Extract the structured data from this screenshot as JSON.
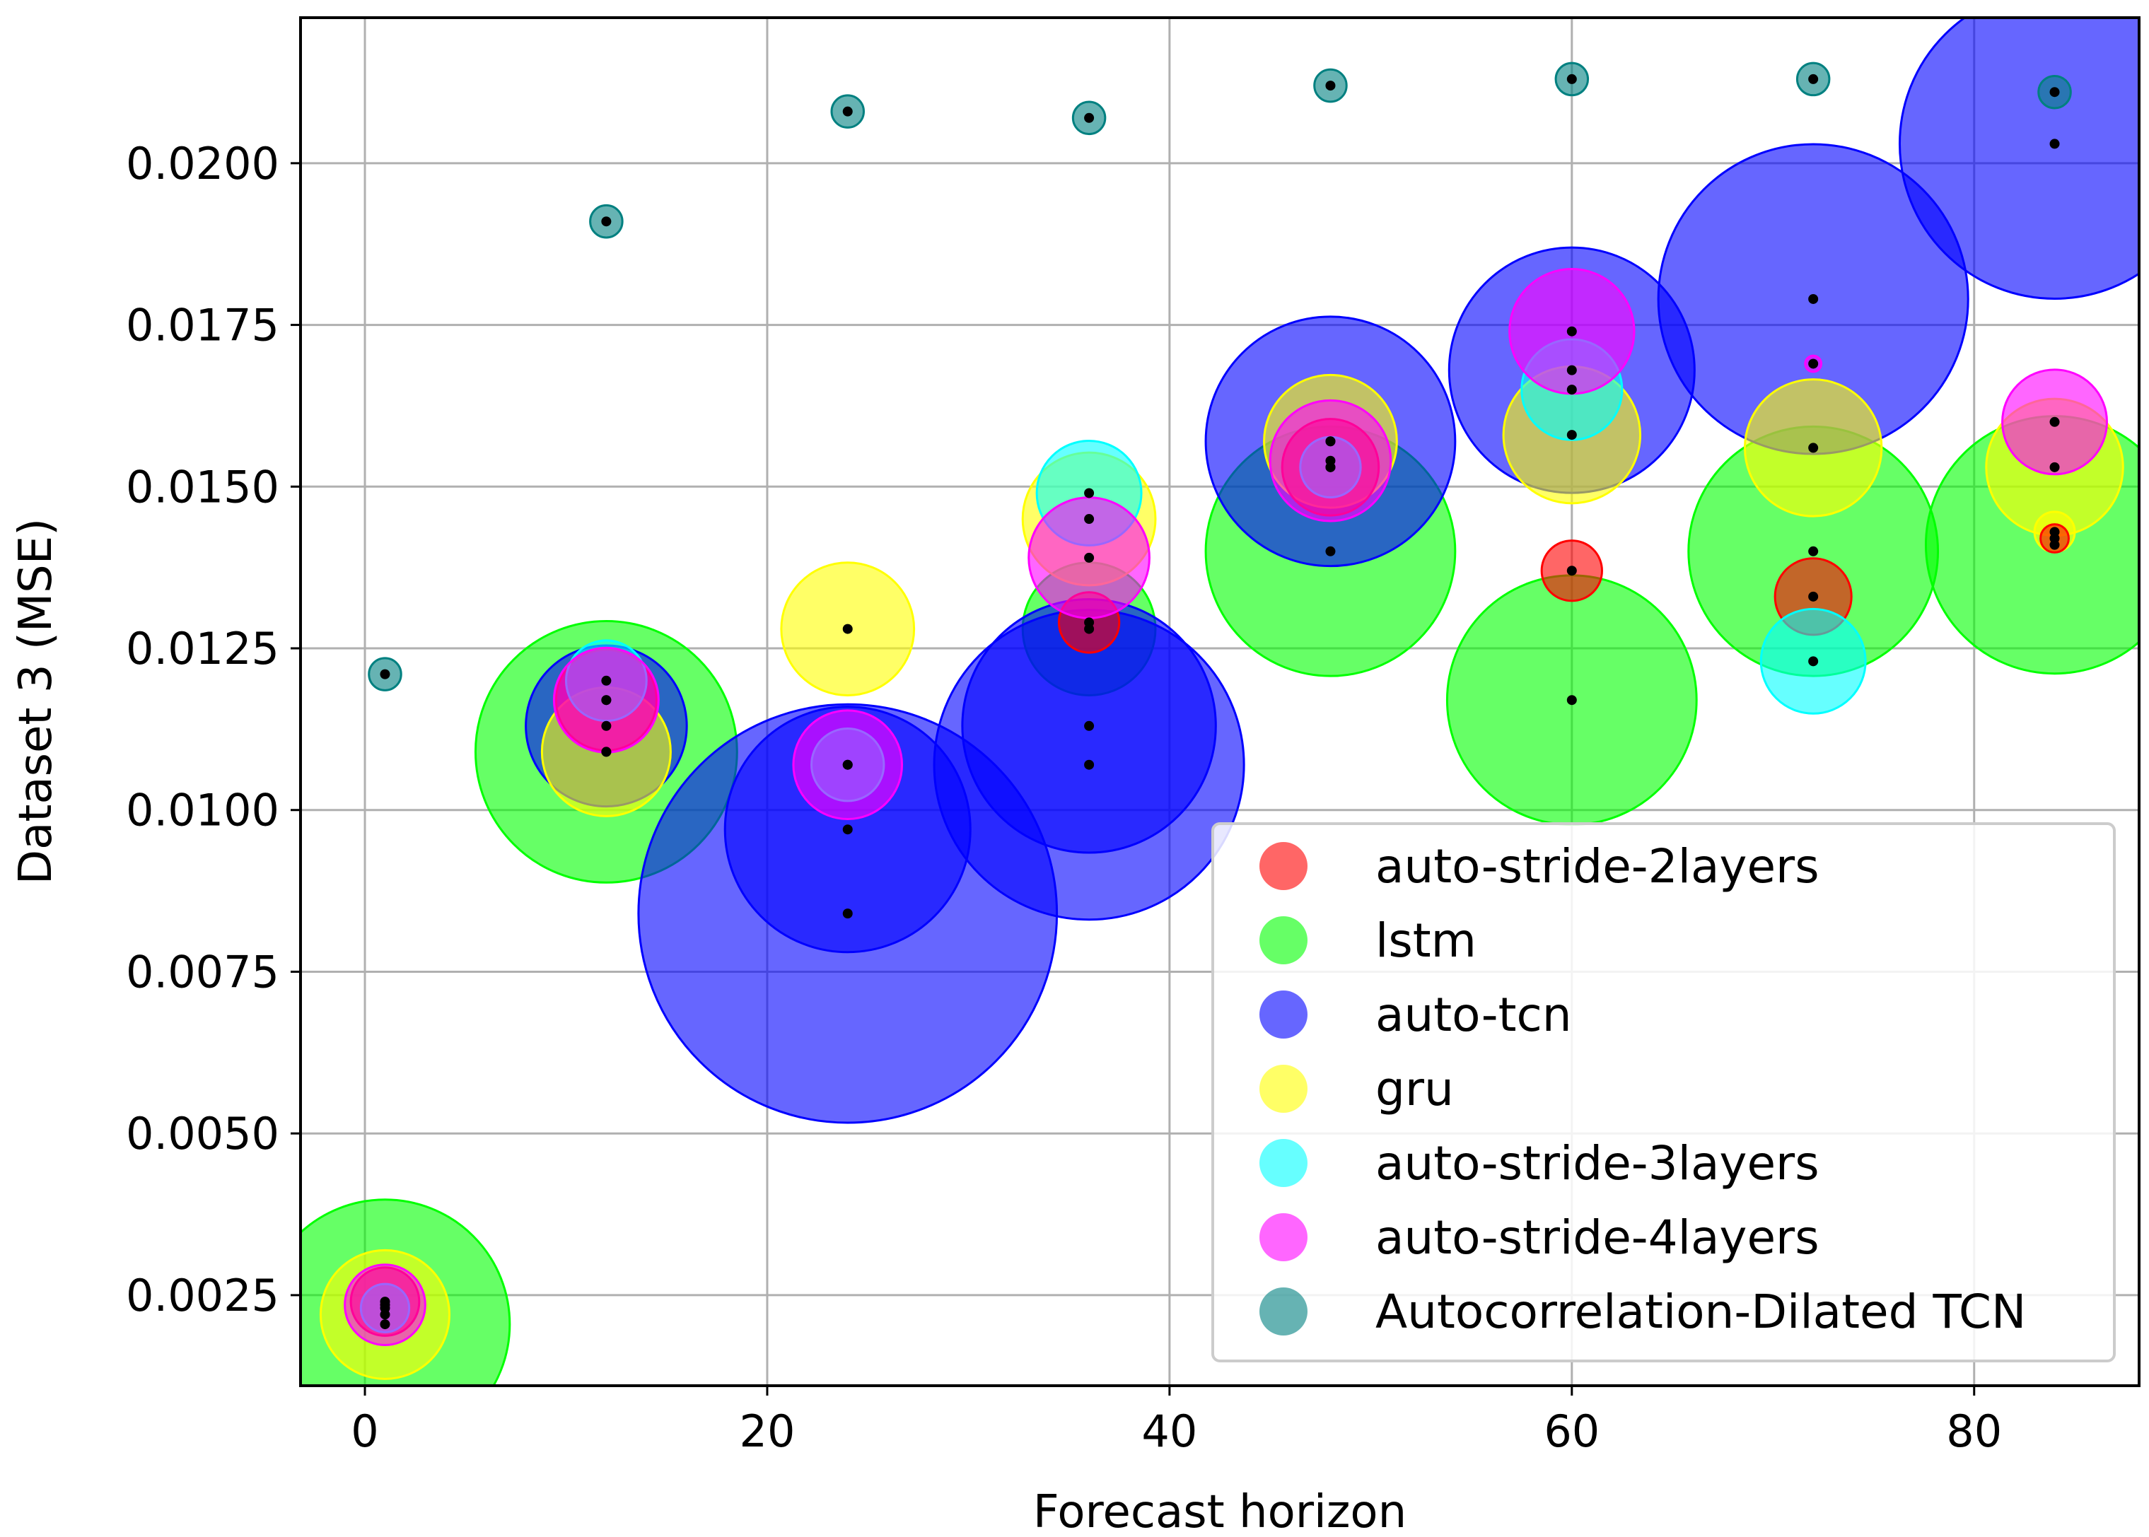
{
  "chart_data": {
    "type": "scatter",
    "title": "",
    "xlabel": "Forecast horizon",
    "ylabel": "Dataset 3 (MSE)",
    "xlim": [
      -3.2,
      88.2
    ],
    "ylim": [
      0.0011,
      0.02225
    ],
    "xticks": [
      0,
      20,
      40,
      60,
      80
    ],
    "xtick_labels": [
      "0",
      "20",
      "40",
      "60",
      "80"
    ],
    "yticks": [
      0.0025,
      0.005,
      0.0075,
      0.01,
      0.0125,
      0.015,
      0.0175,
      0.02
    ],
    "ytick_labels": [
      "0.0025",
      "0.0050",
      "0.0075",
      "0.0100",
      "0.0125",
      "0.0150",
      "0.0175",
      "0.0200"
    ],
    "grid": true,
    "legend_position": "bottom-right",
    "size_note": "marker radius in forecast-horizon (x) units",
    "series": [
      {
        "name": "lstm",
        "color": "#00ff00",
        "points": [
          {
            "x": 1,
            "y": 0.00205,
            "r": 6.2
          },
          {
            "x": 12,
            "y": 0.0109,
            "r": 6.5
          },
          {
            "x": 36,
            "y": 0.0128,
            "r": 3.3
          },
          {
            "x": 48,
            "y": 0.014,
            "r": 6.2
          },
          {
            "x": 60,
            "y": 0.0117,
            "r": 6.2
          },
          {
            "x": 72,
            "y": 0.014,
            "r": 6.2
          },
          {
            "x": 84,
            "y": 0.0141,
            "r": 6.4
          }
        ]
      },
      {
        "name": "auto-tcn",
        "color": "#0000ff",
        "points": [
          {
            "x": 12,
            "y": 0.0113,
            "r": 4.0
          },
          {
            "x": 24,
            "y": 0.0084,
            "r": 10.4
          },
          {
            "x": 24,
            "y": 0.0097,
            "r": 6.1
          },
          {
            "x": 36,
            "y": 0.0107,
            "r": 7.7
          },
          {
            "x": 36,
            "y": 0.0113,
            "r": 6.3
          },
          {
            "x": 48,
            "y": 0.0157,
            "r": 6.2
          },
          {
            "x": 60,
            "y": 0.0168,
            "r": 6.1
          },
          {
            "x": 72,
            "y": 0.0179,
            "r": 7.7
          },
          {
            "x": 84,
            "y": 0.0203,
            "r": 7.7
          }
        ]
      },
      {
        "name": "gru",
        "color": "#ffff00",
        "points": [
          {
            "x": 1,
            "y": 0.0022,
            "r": 3.2
          },
          {
            "x": 12,
            "y": 0.0109,
            "r": 3.2
          },
          {
            "x": 24,
            "y": 0.0128,
            "r": 3.3
          },
          {
            "x": 36,
            "y": 0.0145,
            "r": 3.3
          },
          {
            "x": 48,
            "y": 0.0157,
            "r": 3.3
          },
          {
            "x": 60,
            "y": 0.0158,
            "r": 3.4
          },
          {
            "x": 72,
            "y": 0.0156,
            "r": 3.4
          },
          {
            "x": 84,
            "y": 0.0153,
            "r": 3.4
          },
          {
            "x": 84,
            "y": 0.0143,
            "r": 1.0
          }
        ]
      },
      {
        "name": "auto-stride-2layers",
        "color": "#ff0000",
        "points": [
          {
            "x": 1,
            "y": 0.0024,
            "r": 1.7
          },
          {
            "x": 12,
            "y": 0.0117,
            "r": 2.5
          },
          {
            "x": 36,
            "y": 0.0129,
            "r": 1.5
          },
          {
            "x": 48,
            "y": 0.0153,
            "r": 2.4
          },
          {
            "x": 60,
            "y": 0.0137,
            "r": 1.5
          },
          {
            "x": 72,
            "y": 0.0133,
            "r": 1.9
          },
          {
            "x": 84,
            "y": 0.0142,
            "r": 0.7
          }
        ]
      },
      {
        "name": "auto-stride-3layers",
        "color": "#00ffff",
        "points": [
          {
            "x": 1,
            "y": 0.0023,
            "r": 1.2
          },
          {
            "x": 12,
            "y": 0.012,
            "r": 2.0
          },
          {
            "x": 24,
            "y": 0.0107,
            "r": 1.8
          },
          {
            "x": 36,
            "y": 0.0149,
            "r": 2.6
          },
          {
            "x": 48,
            "y": 0.0153,
            "r": 1.5
          },
          {
            "x": 60,
            "y": 0.0165,
            "r": 2.5
          },
          {
            "x": 72,
            "y": 0.0123,
            "r": 2.6
          }
        ]
      },
      {
        "name": "auto-stride-4layers",
        "color": "#ff00ff",
        "points": [
          {
            "x": 1,
            "y": 0.00235,
            "r": 2.0
          },
          {
            "x": 12,
            "y": 0.0117,
            "r": 2.6
          },
          {
            "x": 24,
            "y": 0.0107,
            "r": 2.7
          },
          {
            "x": 36,
            "y": 0.0139,
            "r": 3.0
          },
          {
            "x": 48,
            "y": 0.0154,
            "r": 3.0
          },
          {
            "x": 60,
            "y": 0.0174,
            "r": 3.1
          },
          {
            "x": 72,
            "y": 0.0169,
            "r": 0.4
          },
          {
            "x": 84,
            "y": 0.016,
            "r": 2.6
          }
        ]
      },
      {
        "name": "Autocorrelation-Dilated TCN",
        "color": "#008080",
        "points": [
          {
            "x": 1,
            "y": 0.0121,
            "r": 0.8
          },
          {
            "x": 12,
            "y": 0.0191,
            "r": 0.8
          },
          {
            "x": 24,
            "y": 0.0208,
            "r": 0.8
          },
          {
            "x": 36,
            "y": 0.0207,
            "r": 0.8
          },
          {
            "x": 48,
            "y": 0.0212,
            "r": 0.8
          },
          {
            "x": 60,
            "y": 0.0213,
            "r": 0.8
          },
          {
            "x": 72,
            "y": 0.0213,
            "r": 0.8
          },
          {
            "x": 84,
            "y": 0.0211,
            "r": 0.8
          }
        ]
      }
    ],
    "legend": [
      {
        "label": "auto-stride-2layers",
        "color": "#ff0000"
      },
      {
        "label": "lstm",
        "color": "#00ff00"
      },
      {
        "label": "auto-tcn",
        "color": "#0000ff"
      },
      {
        "label": "gru",
        "color": "#ffff00"
      },
      {
        "label": "auto-stride-3layers",
        "color": "#00ffff"
      },
      {
        "label": "auto-stride-4layers",
        "color": "#ff00ff"
      },
      {
        "label": "Autocorrelation-Dilated TCN",
        "color": "#008080"
      }
    ]
  }
}
